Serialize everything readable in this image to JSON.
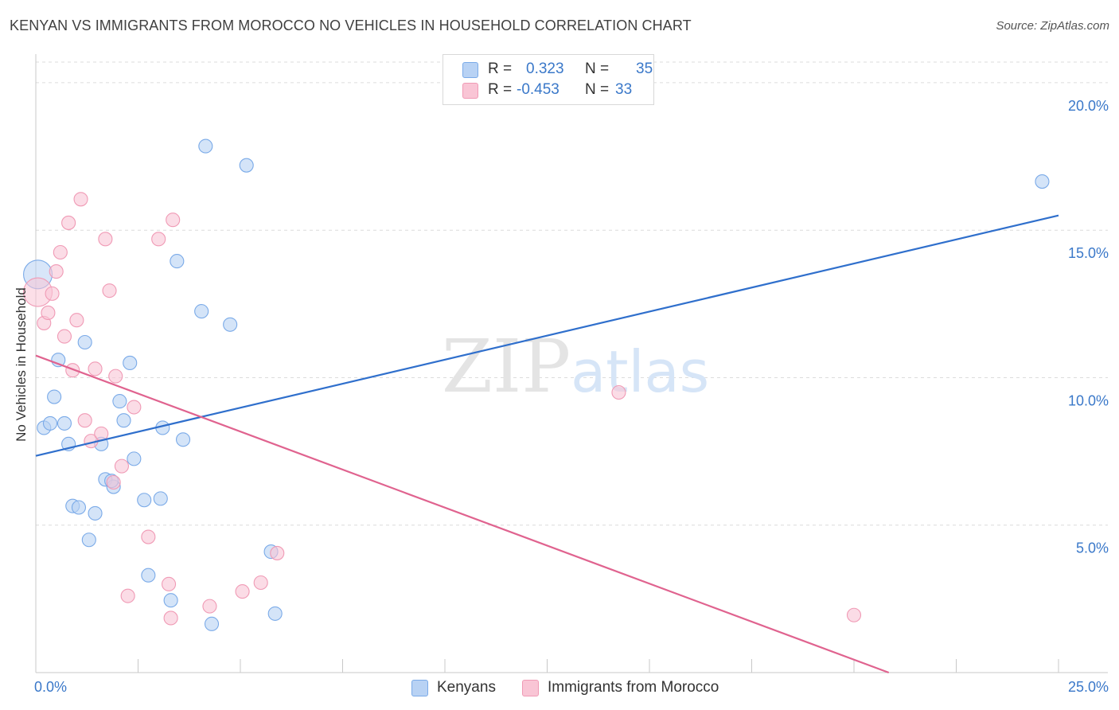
{
  "chart_data": {
    "type": "scatter",
    "title": "KENYAN VS IMMIGRANTS FROM MOROCCO NO VEHICLES IN HOUSEHOLD CORRELATION CHART",
    "source": "Source: ZipAtlas.com",
    "xlabel": "",
    "ylabel": "No Vehicles in Household",
    "xlim": [
      0,
      25
    ],
    "ylim": [
      0,
      20.7
    ],
    "x_tick_labels": [
      "0.0%",
      "25.0%"
    ],
    "y_ticks": [
      5,
      10,
      15,
      20
    ],
    "y_tick_labels": [
      "5.0%",
      "10.0%",
      "15.0%",
      "20.0%"
    ],
    "grid": true,
    "watermark": "ZIPatlas",
    "legend": [
      {
        "r_label": "R =",
        "r_value": "0.323",
        "n_label": "N =",
        "n_value": "35"
      },
      {
        "r_label": "R =",
        "r_value": "-0.453",
        "n_label": "N =",
        "n_value": "33"
      }
    ],
    "series": [
      {
        "name": "Kenyans",
        "color": "#7aaae8",
        "fill": "#b8d2f4",
        "line_color": "#2f6fcc",
        "trend": {
          "x": [
            0,
            25
          ],
          "y": [
            7.35,
            15.5
          ]
        },
        "points": [
          {
            "x": 0.05,
            "y": 13.5,
            "big": true
          },
          {
            "x": 0.2,
            "y": 8.3
          },
          {
            "x": 0.35,
            "y": 8.45
          },
          {
            "x": 0.45,
            "y": 9.35
          },
          {
            "x": 0.55,
            "y": 10.6
          },
          {
            "x": 0.7,
            "y": 8.45
          },
          {
            "x": 0.8,
            "y": 7.75
          },
          {
            "x": 0.9,
            "y": 5.65
          },
          {
            "x": 1.05,
            "y": 5.6
          },
          {
            "x": 1.2,
            "y": 11.2
          },
          {
            "x": 1.3,
            "y": 4.5
          },
          {
            "x": 1.45,
            "y": 5.4
          },
          {
            "x": 1.6,
            "y": 7.75
          },
          {
            "x": 1.7,
            "y": 6.55
          },
          {
            "x": 1.9,
            "y": 6.3
          },
          {
            "x": 2.05,
            "y": 9.2
          },
          {
            "x": 2.15,
            "y": 8.55
          },
          {
            "x": 2.3,
            "y": 10.5
          },
          {
            "x": 2.4,
            "y": 7.25
          },
          {
            "x": 2.65,
            "y": 5.85
          },
          {
            "x": 2.75,
            "y": 3.3
          },
          {
            "x": 3.05,
            "y": 5.9
          },
          {
            "x": 3.1,
            "y": 8.3
          },
          {
            "x": 3.3,
            "y": 2.45
          },
          {
            "x": 3.45,
            "y": 13.95
          },
          {
            "x": 3.6,
            "y": 7.9
          },
          {
            "x": 4.05,
            "y": 12.25
          },
          {
            "x": 4.15,
            "y": 17.85
          },
          {
            "x": 4.3,
            "y": 1.65
          },
          {
            "x": 4.75,
            "y": 11.8
          },
          {
            "x": 5.15,
            "y": 17.2
          },
          {
            "x": 5.75,
            "y": 4.1
          },
          {
            "x": 5.85,
            "y": 2.0
          },
          {
            "x": 1.85,
            "y": 6.5
          },
          {
            "x": 24.6,
            "y": 16.65
          }
        ]
      },
      {
        "name": "Immigrants from Morocco",
        "color": "#f09ab5",
        "fill": "#f9c5d5",
        "line_color": "#e0638f",
        "trend": {
          "x": [
            0,
            20.85
          ],
          "y": [
            10.75,
            0.0
          ]
        },
        "points": [
          {
            "x": 0.05,
            "y": 12.9,
            "big": true
          },
          {
            "x": 0.2,
            "y": 11.85
          },
          {
            "x": 0.3,
            "y": 12.2
          },
          {
            "x": 0.4,
            "y": 12.85
          },
          {
            "x": 0.5,
            "y": 13.6
          },
          {
            "x": 0.6,
            "y": 14.25
          },
          {
            "x": 0.7,
            "y": 11.4
          },
          {
            "x": 0.8,
            "y": 15.25
          },
          {
            "x": 0.9,
            "y": 10.25
          },
          {
            "x": 1.0,
            "y": 11.95
          },
          {
            "x": 1.1,
            "y": 16.05
          },
          {
            "x": 1.2,
            "y": 8.55
          },
          {
            "x": 1.35,
            "y": 7.85
          },
          {
            "x": 1.45,
            "y": 10.3
          },
          {
            "x": 1.6,
            "y": 8.1
          },
          {
            "x": 1.7,
            "y": 14.7
          },
          {
            "x": 1.8,
            "y": 12.95
          },
          {
            "x": 1.9,
            "y": 6.45
          },
          {
            "x": 1.95,
            "y": 10.05
          },
          {
            "x": 2.1,
            "y": 7.0
          },
          {
            "x": 2.25,
            "y": 2.6
          },
          {
            "x": 2.4,
            "y": 9.0
          },
          {
            "x": 2.75,
            "y": 4.6
          },
          {
            "x": 3.0,
            "y": 14.7
          },
          {
            "x": 3.25,
            "y": 3.0
          },
          {
            "x": 3.3,
            "y": 1.85
          },
          {
            "x": 3.35,
            "y": 15.35
          },
          {
            "x": 4.25,
            "y": 2.25
          },
          {
            "x": 5.05,
            "y": 2.75
          },
          {
            "x": 5.5,
            "y": 3.05
          },
          {
            "x": 5.9,
            "y": 4.05
          },
          {
            "x": 14.25,
            "y": 9.5
          },
          {
            "x": 20.0,
            "y": 1.95
          }
        ]
      }
    ]
  }
}
